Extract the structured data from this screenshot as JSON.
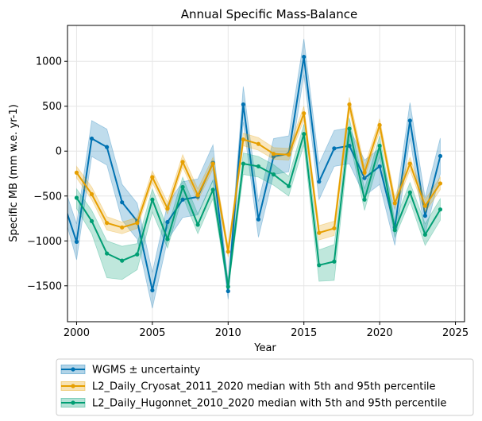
{
  "chart_data": {
    "type": "line",
    "title": "Annual Specific Mass-Balance",
    "xlabel": "Year",
    "ylabel": "Specific MB (mm w.e. yr-1)",
    "xlim": [
      1999.4,
      2025.6
    ],
    "ylim": [
      -1900,
      1400
    ],
    "x_ticks": [
      2000,
      2005,
      2010,
      2015,
      2020,
      2025
    ],
    "x_tick_labels": [
      "2000",
      "2005",
      "2010",
      "2015",
      "2020",
      "2025"
    ],
    "y_ticks": [
      -1500,
      -1000,
      -500,
      0,
      500,
      1000
    ],
    "y_tick_labels": [
      "−1500",
      "−1000",
      "−500",
      "0",
      "500",
      "1000"
    ],
    "grid": true,
    "legend_position": "bottom-outside",
    "series": [
      {
        "name": "WGMS ± uncertainty",
        "color": "#0072b2",
        "x": [
          1999,
          2000,
          2001,
          2002,
          2003,
          2004,
          2005,
          2006,
          2007,
          2008,
          2009,
          2010,
          2011,
          2012,
          2013,
          2014,
          2015,
          2016,
          2017,
          2018,
          2019,
          2020,
          2021,
          2022,
          2023,
          2024
        ],
        "values": [
          -500,
          -1010,
          140,
          45,
          -570,
          -780,
          -1550,
          -790,
          -540,
          -510,
          -130,
          -1560,
          520,
          -760,
          -60,
          -30,
          1050,
          -340,
          30,
          60,
          -300,
          -170,
          -850,
          340,
          -720,
          -55
        ],
        "lower": [
          -600,
          -1210,
          -60,
          -155,
          -770,
          -980,
          -1750,
          -990,
          -740,
          -710,
          -330,
          -1650,
          320,
          -960,
          -260,
          -230,
          850,
          -540,
          -170,
          -140,
          -500,
          -370,
          -1050,
          140,
          -920,
          -255
        ],
        "upper": [
          -300,
          -810,
          340,
          245,
          -370,
          -580,
          -1350,
          -590,
          -340,
          -310,
          70,
          -1450,
          720,
          -560,
          140,
          170,
          1250,
          -140,
          230,
          260,
          -100,
          30,
          -650,
          540,
          -520,
          145
        ]
      },
      {
        "name": "L2_Daily_Cryosat_2011_2020 median with 5th and 95th percentile",
        "color": "#e69f00",
        "x": [
          2000,
          2001,
          2002,
          2003,
          2004,
          2005,
          2006,
          2007,
          2008,
          2009,
          2010,
          2011,
          2012,
          2013,
          2014,
          2015,
          2016,
          2017,
          2018,
          2019,
          2020,
          2021,
          2022,
          2023,
          2024
        ],
        "values": [
          -240,
          -480,
          -800,
          -850,
          -800,
          -290,
          -640,
          -120,
          -490,
          -140,
          -1120,
          130,
          80,
          -30,
          -40,
          420,
          -910,
          -860,
          520,
          -240,
          290,
          -580,
          -140,
          -610,
          -360
        ],
        "lower": [
          -300,
          -540,
          -880,
          -920,
          -860,
          -350,
          -700,
          -180,
          -550,
          -200,
          -1180,
          60,
          10,
          -90,
          -100,
          350,
          -990,
          -940,
          450,
          -300,
          220,
          -640,
          -210,
          -680,
          -430
        ],
        "upper": [
          -170,
          -400,
          -730,
          -790,
          -740,
          -220,
          -570,
          -40,
          -420,
          -70,
          -1060,
          200,
          150,
          40,
          30,
          500,
          -830,
          -780,
          600,
          -170,
          360,
          -510,
          -70,
          -540,
          -290
        ]
      },
      {
        "name": "L2_Daily_Hugonnet_2010_2020 median with 5th and 95th percentile",
        "color": "#009e73",
        "x": [
          2000,
          2001,
          2002,
          2003,
          2004,
          2005,
          2006,
          2007,
          2008,
          2009,
          2010,
          2011,
          2012,
          2013,
          2014,
          2015,
          2016,
          2017,
          2018,
          2019,
          2020,
          2021,
          2022,
          2023,
          2024
        ],
        "values": [
          -520,
          -780,
          -1140,
          -1220,
          -1150,
          -540,
          -980,
          -400,
          -820,
          -430,
          -1510,
          -140,
          -170,
          -260,
          -390,
          190,
          -1270,
          -1230,
          250,
          -540,
          60,
          -880,
          -460,
          -930,
          -650
        ],
        "lower": [
          -640,
          -920,
          -1410,
          -1430,
          -1320,
          -680,
          -1080,
          -500,
          -920,
          -530,
          -1560,
          -260,
          -290,
          -380,
          -500,
          70,
          -1450,
          -1440,
          130,
          -660,
          -60,
          -960,
          -560,
          -1050,
          -770
        ],
        "upper": [
          -420,
          -660,
          -1000,
          -1060,
          -1030,
          -420,
          -860,
          -290,
          -700,
          -320,
          -1450,
          -20,
          -60,
          -150,
          -280,
          300,
          -1100,
          -1040,
          370,
          -420,
          170,
          -780,
          -350,
          -810,
          -530
        ]
      }
    ]
  }
}
